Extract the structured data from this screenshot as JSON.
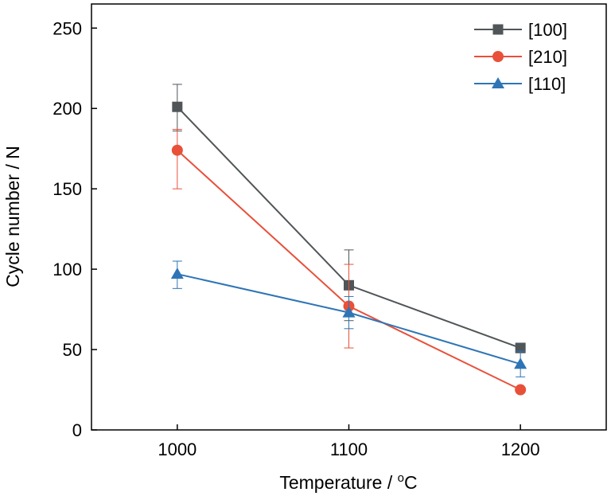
{
  "chart_data": {
    "type": "line",
    "xlabel": "Temperature / ",
    "xlabel_unit_sup": "o",
    "xlabel_unit": "C",
    "ylabel": "Cycle number / N",
    "x": [
      1000,
      1100,
      1200
    ],
    "x_ticks": [
      "1000",
      "1100",
      "1200"
    ],
    "y_ticks": [
      "0",
      "50",
      "100",
      "150",
      "200",
      "250"
    ],
    "xlim": [
      950,
      1250
    ],
    "ylim": [
      0,
      265
    ],
    "grid": false,
    "legend_position": "top-right",
    "series": [
      {
        "name": "[100]",
        "marker": "square",
        "color": "#505558",
        "values": [
          201,
          90,
          51
        ],
        "err_low": [
          15,
          22,
          3
        ],
        "err_high": [
          14,
          22,
          3
        ]
      },
      {
        "name": "[210]",
        "marker": "circle",
        "color": "#e8503a",
        "values": [
          174,
          77,
          25
        ],
        "err_low": [
          24,
          26,
          0
        ],
        "err_high": [
          13,
          26,
          0
        ]
      },
      {
        "name": "[110]",
        "marker": "triangle",
        "color": "#2e75b6",
        "values": [
          97,
          73,
          41
        ],
        "err_low": [
          9,
          10,
          8
        ],
        "err_high": [
          8,
          10,
          8
        ]
      }
    ]
  }
}
